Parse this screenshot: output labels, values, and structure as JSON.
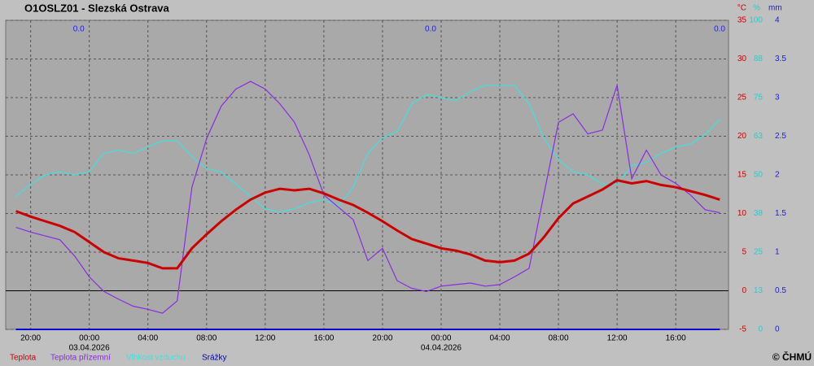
{
  "chart_data": {
    "type": "line",
    "title": "O1OSLZ01 - Slezská Ostrava",
    "credit": "© ČHMÚ",
    "x": [
      19,
      20,
      21,
      22,
      23,
      24,
      25,
      26,
      27,
      28,
      29,
      30,
      31,
      32,
      33,
      34,
      35,
      36,
      37,
      38,
      39,
      40,
      41,
      42,
      43,
      44,
      45,
      46,
      47,
      48,
      49,
      50,
      51,
      52,
      53,
      54,
      55,
      56,
      57,
      58,
      59,
      60,
      61,
      62,
      63,
      64,
      65,
      66,
      67
    ],
    "xlim": [
      18.3,
      67.6
    ],
    "xticks": [
      {
        "value": 20,
        "label": "20:00"
      },
      {
        "value": 24,
        "label": "00:00"
      },
      {
        "value": 28,
        "label": "04:00"
      },
      {
        "value": 32,
        "label": "08:00"
      },
      {
        "value": 36,
        "label": "12:00"
      },
      {
        "value": 40,
        "label": "16:00"
      },
      {
        "value": 44,
        "label": "20:00"
      },
      {
        "value": 48,
        "label": "00:00"
      },
      {
        "value": 52,
        "label": "04:00"
      },
      {
        "value": 56,
        "label": "08:00"
      },
      {
        "value": 60,
        "label": "12:00"
      },
      {
        "value": 64,
        "label": "16:00"
      }
    ],
    "x_date_labels": [
      {
        "value": 24,
        "label": "03.04.2026"
      },
      {
        "value": 48,
        "label": "04.04.2026"
      }
    ],
    "precip_totals": [
      "0.0",
      "0.0",
      "0.0"
    ],
    "y_unit": "°C",
    "y2_unit": "%",
    "y3_unit": "mm",
    "ylim": [
      -5,
      35
    ],
    "yticks": [
      -5,
      0,
      5,
      10,
      15,
      20,
      25,
      30,
      35
    ],
    "y2lim": [
      0,
      100
    ],
    "y2ticks": [
      0,
      {
        "value": 12.5,
        "label": "13"
      },
      25,
      {
        "value": 37.5,
        "label": "38"
      },
      50,
      {
        "value": 62.5,
        "label": "63"
      },
      75,
      {
        "value": 87.5,
        "label": "88"
      },
      100
    ],
    "y3lim": [
      0,
      4
    ],
    "y3ticks": [
      0,
      0.5,
      1,
      1.5,
      2,
      2.5,
      3,
      3.5,
      4
    ],
    "grid": true,
    "series": [
      {
        "name": "Teplota",
        "color": "#cc0000",
        "axis": "y",
        "values": [
          10.3,
          9.6,
          9.0,
          8.4,
          7.6,
          6.3,
          5.0,
          4.2,
          3.9,
          3.6,
          2.9,
          2.9,
          5.5,
          7.3,
          9.0,
          10.5,
          11.8,
          12.7,
          13.2,
          13.0,
          13.2,
          12.6,
          11.8,
          11.1,
          10.1,
          9.0,
          7.8,
          6.7,
          6.1,
          5.5,
          5.2,
          4.7,
          3.9,
          3.7,
          3.9,
          4.8,
          6.9,
          9.4,
          11.3,
          12.2,
          13.1,
          14.3,
          13.9,
          14.2,
          13.7,
          13.4,
          12.9,
          12.4,
          11.8
        ]
      },
      {
        "name": "Teplota přízemní",
        "color": "#8a2be2",
        "axis": "y",
        "values": [
          8.2,
          7.6,
          7.1,
          6.6,
          4.5,
          1.8,
          -0.1,
          -1.1,
          -2.0,
          -2.4,
          -2.9,
          -1.3,
          13.4,
          19.7,
          23.9,
          26.1,
          27.1,
          26.1,
          24.2,
          21.8,
          17.6,
          12.4,
          10.8,
          9.2,
          3.9,
          5.5,
          1.3,
          0.3,
          -0.1,
          0.6,
          0.8,
          1.0,
          0.6,
          0.8,
          1.8,
          2.9,
          12.4,
          21.8,
          22.9,
          20.3,
          20.8,
          26.6,
          14.5,
          18.2,
          15.0,
          13.9,
          12.4,
          10.5,
          10.1
        ]
      },
      {
        "name": "Vlhkost vzduchu",
        "color": "#40e0e0",
        "axis": "y2",
        "values": [
          43,
          47,
          50,
          51,
          50,
          51,
          57,
          58,
          57,
          59,
          61,
          61,
          56,
          52,
          51,
          47,
          43,
          39,
          38,
          39,
          41,
          42,
          40,
          46,
          57,
          62,
          64,
          73,
          76,
          75,
          74,
          77,
          79,
          79,
          79,
          73,
          62,
          55,
          51,
          50,
          47,
          47,
          53,
          54,
          57,
          59,
          60,
          63,
          68
        ]
      },
      {
        "name": "Srážky",
        "color": "#0000cc",
        "axis": "y3",
        "values": [
          0,
          0,
          0,
          0,
          0,
          0,
          0,
          0,
          0,
          0,
          0,
          0,
          0,
          0,
          0,
          0,
          0,
          0,
          0,
          0,
          0,
          0,
          0,
          0,
          0,
          0,
          0,
          0,
          0,
          0,
          0,
          0,
          0,
          0,
          0,
          0,
          0,
          0,
          0,
          0,
          0,
          0,
          0,
          0,
          0,
          0,
          0,
          0,
          0
        ]
      }
    ]
  }
}
